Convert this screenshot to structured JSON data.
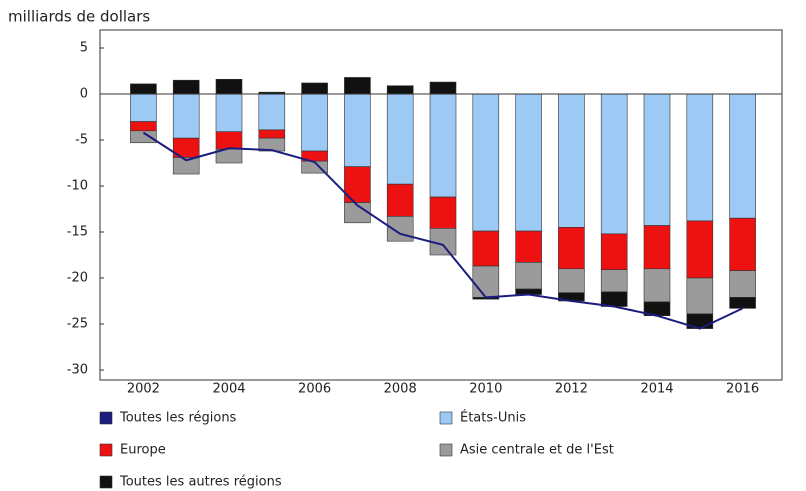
{
  "chart_data": {
    "type": "bar",
    "title": "milliards de dollars",
    "categories": [
      "2002",
      null,
      "2004",
      null,
      "2006",
      null,
      "2008",
      null,
      "2010",
      null,
      "2012",
      null,
      "2014",
      null,
      "2016"
    ],
    "series": [
      {
        "name": "Toutes les régions",
        "type": "line",
        "color": "#1c1c80",
        "values": [
          -4.2,
          -7.2,
          -5.9,
          -6.1,
          -7.4,
          -12.1,
          -15.2,
          -16.4,
          -22.1,
          -21.8,
          -22.5,
          -23.1,
          -24.1,
          -25.5,
          -23.3
        ]
      },
      {
        "name": "États-Unis",
        "type": "bar",
        "color": "#9dc9f5",
        "values": [
          -3.0,
          -4.8,
          -4.1,
          -3.9,
          -6.2,
          -7.9,
          -9.8,
          -11.2,
          -14.9,
          -14.9,
          -14.5,
          -15.2,
          -14.3,
          -13.8,
          -13.5
        ]
      },
      {
        "name": "Europe",
        "type": "bar",
        "color": "#ee1111",
        "values": [
          -1.0,
          -2.1,
          -1.9,
          -0.9,
          -1.1,
          -3.9,
          -3.5,
          -3.4,
          -3.8,
          -3.4,
          -4.5,
          -3.9,
          -4.7,
          -6.2,
          -5.7
        ]
      },
      {
        "name": "Asie centrale et de l'Est",
        "type": "bar",
        "color": "#9b9b9b",
        "values": [
          -1.3,
          -1.8,
          -1.5,
          -1.4,
          -1.3,
          -2.2,
          -2.7,
          -2.9,
          -3.4,
          -2.9,
          -2.6,
          -2.4,
          -3.6,
          -3.9,
          -2.9
        ]
      },
      {
        "name": "Toutes les autres régions",
        "type": "bar",
        "color": "#111111",
        "values": [
          1.1,
          1.5,
          1.6,
          0.2,
          1.2,
          1.8,
          0.9,
          1.3,
          -0.2,
          -0.6,
          -0.9,
          -1.6,
          -1.5,
          -1.6,
          -1.2
        ]
      }
    ],
    "ylim": [
      -30,
      5
    ],
    "yticks": [
      -30,
      -25,
      -20,
      -15,
      -10,
      -5,
      0,
      5
    ]
  }
}
